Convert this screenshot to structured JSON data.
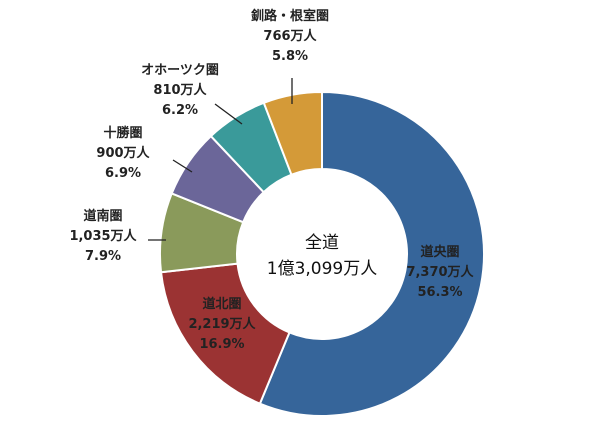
{
  "chart_data": {
    "type": "donut",
    "center_label": [
      "全道",
      "1億3,099万人"
    ],
    "slices": [
      {
        "name": "道央圏",
        "value_text": "7,370万人",
        "value": 7370,
        "percent": 56.3,
        "percent_text": "56.3%",
        "color": "#36659a"
      },
      {
        "name": "道北圏",
        "value_text": "2,219万人",
        "value": 2219,
        "percent": 16.9,
        "percent_text": "16.9%",
        "color": "#9b3333"
      },
      {
        "name": "道南圏",
        "value_text": "1,035万人",
        "value": 1035,
        "percent": 7.9,
        "percent_text": "7.9%",
        "color": "#8a9a5b"
      },
      {
        "name": "十勝圏",
        "value_text": "900万人",
        "value": 900,
        "percent": 6.9,
        "percent_text": "6.9%",
        "color": "#6b6699"
      },
      {
        "name": "オホーツク圏",
        "value_text": "810万人",
        "value": 810,
        "percent": 6.2,
        "percent_text": "6.2%",
        "color": "#3a9a9a"
      },
      {
        "name": "釧路・根室圏",
        "value_text": "766万人",
        "value": 766,
        "percent": 5.8,
        "percent_text": "5.8%",
        "color": "#d49a38"
      }
    ]
  }
}
